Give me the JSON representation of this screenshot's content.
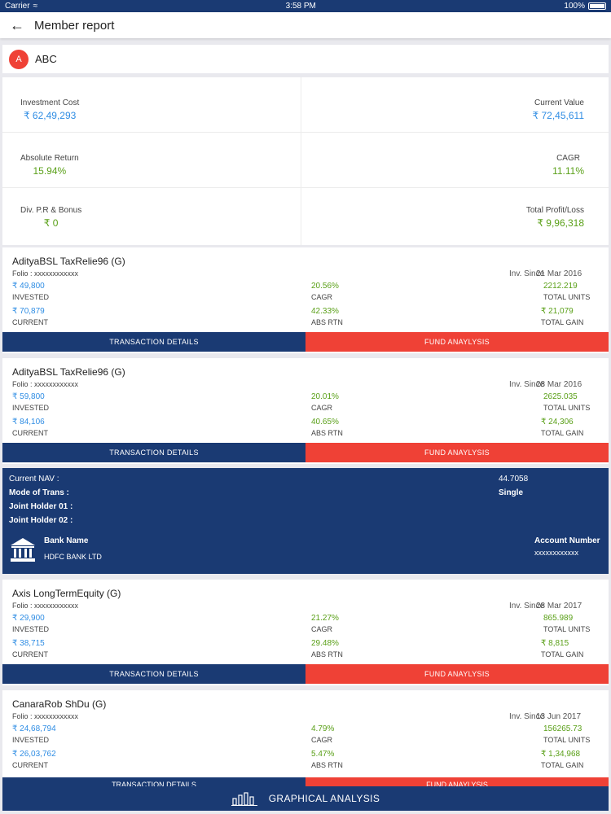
{
  "status": {
    "carrier": "Carrier",
    "time": "3:58 PM",
    "battery": "100%"
  },
  "header": {
    "title": "Member report"
  },
  "member": {
    "initial": "A",
    "name": "ABC"
  },
  "summary": {
    "investment_cost_label": "Investment Cost",
    "investment_cost": "₹ 62,49,293",
    "current_value_label": "Current Value",
    "current_value": "₹ 72,45,611",
    "absolute_return_label": "Absolute Return",
    "absolute_return": "15.94%",
    "cagr_label": "CAGR",
    "cagr": "11.11%",
    "div_label": "Div. P.R & Bonus",
    "div": "₹ 0",
    "total_pl_label": "Total Profit/Loss",
    "total_pl": "₹ 9,96,318"
  },
  "labels": {
    "invested": "INVESTED",
    "current": "CURRENT",
    "cagr": "CAGR",
    "abs_rtn": "ABS RTN",
    "total_units": "TOTAL UNITS",
    "total_gain": "TOTAL GAIN",
    "folio": "Folio : ",
    "inv_since": "Inv. Since",
    "transaction_details": "TRANSACTION DETAILS",
    "fund_analysis": "FUND ANAYLYSIS"
  },
  "funds": [
    {
      "name": "AdityaBSL TaxRelie96 (G)",
      "folio": "xxxxxxxxxxxx",
      "since": "21 Mar 2016",
      "invested": "₹ 49,800",
      "cagr": "20.56%",
      "total_units": "2212.219",
      "current": "₹ 70,879",
      "abs_rtn": "42.33%",
      "total_gain": "₹ 21,079"
    },
    {
      "name": "AdityaBSL TaxRelie96 (G)",
      "folio": "xxxxxxxxxxxx",
      "since": "28 Mar 2016",
      "invested": "₹ 59,800",
      "cagr": "20.01%",
      "total_units": "2625.035",
      "current": "₹ 84,106",
      "abs_rtn": "40.65%",
      "total_gain": "₹ 24,306"
    },
    {
      "name": "Axis LongTermEquity (G)",
      "folio": "xxxxxxxxxxxx",
      "since": "28 Mar 2017",
      "invested": "₹ 29,900",
      "cagr": "21.27%",
      "total_units": "865.989",
      "current": "₹ 38,715",
      "abs_rtn": "29.48%",
      "total_gain": "₹ 8,815"
    },
    {
      "name": "CanaraRob ShDu (G)",
      "folio": "xxxxxxxxxxxx",
      "since": "13 Jun 2017",
      "invested": "₹ 24,68,794",
      "cagr": "4.79%",
      "total_units": "156265.73",
      "current": "₹ 26,03,762",
      "abs_rtn": "5.47%",
      "total_gain": "₹ 1,34,968"
    }
  ],
  "details": {
    "nav_label": "Current NAV :",
    "nav_value": "44.7058",
    "mode_label": "Mode of Trans :",
    "mode_value": "Single",
    "joint1_label": "Joint Holder 01 :",
    "joint2_label": "Joint Holder 02 :",
    "bank_label": "Bank Name",
    "bank_value": "HDFC BANK LTD",
    "account_label": "Account Number",
    "account_value": "xxxxxxxxxxxx"
  },
  "bottom": {
    "label": "GRAPHICAL ANALYSIS"
  },
  "colors": {
    "navy": "#1a3a73",
    "red": "#ef4136",
    "blue": "#2f8de4",
    "green": "#5aa018"
  }
}
